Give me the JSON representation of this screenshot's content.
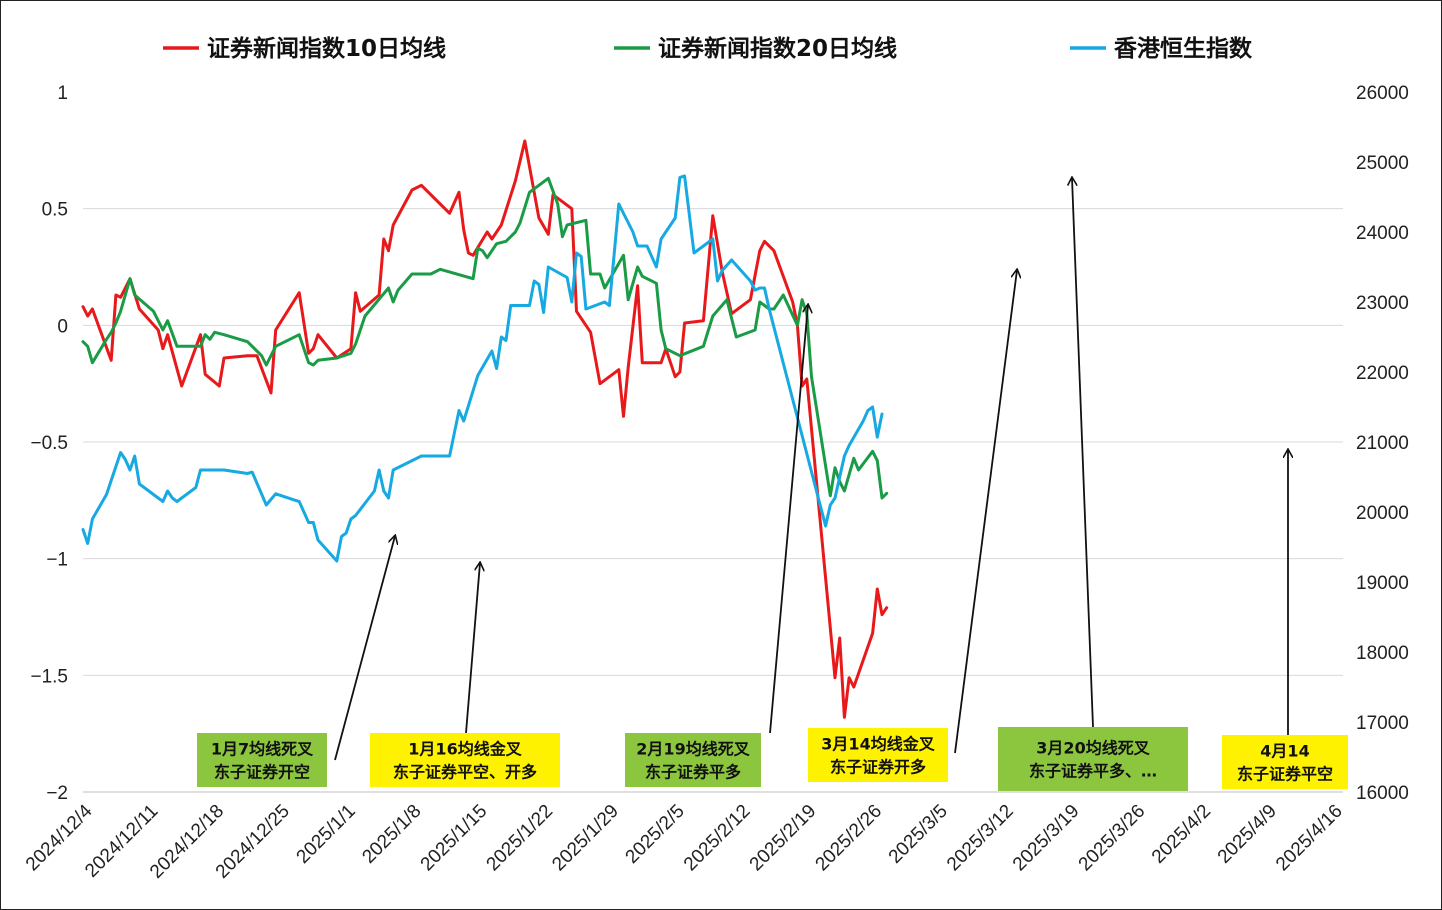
{
  "chart_data": {
    "type": "line",
    "legend_position": "top",
    "grid": "horizontal",
    "x_ticks": [
      "2024/12/4",
      "2024/12/11",
      "2024/12/18",
      "2024/12/25",
      "2025/1/1",
      "2025/1/8",
      "2025/1/15",
      "2025/1/22",
      "2025/1/29",
      "2025/2/5",
      "2025/2/12",
      "2025/2/19",
      "2025/2/26",
      "2025/3/5",
      "2025/3/12",
      "2025/3/19",
      "2025/3/26",
      "2025/4/2",
      "2025/4/9",
      "2025/4/16"
    ],
    "y_left": {
      "ticks": [
        "1",
        "0.5",
        "0",
        "−0.5",
        "−1",
        "−1.5",
        "−2"
      ],
      "range": [
        -2,
        1
      ]
    },
    "y_right": {
      "ticks": [
        "26000",
        "25000",
        "24000",
        "23000",
        "22000",
        "21000",
        "20000",
        "19000",
        "18000",
        "17000",
        "16000"
      ],
      "range": [
        16000,
        26000
      ]
    },
    "series": [
      {
        "name": "证券新闻指数10日均线",
        "color": "#e8191b",
        "axis": "left",
        "points": [
          [
            0,
            0.08
          ],
          [
            0.5,
            0.04
          ],
          [
            1,
            0.07
          ],
          [
            3,
            -0.15
          ],
          [
            3.5,
            0.13
          ],
          [
            4,
            0.12
          ],
          [
            5,
            0.2
          ],
          [
            6,
            0.07
          ],
          [
            8,
            -0.02
          ],
          [
            8.5,
            -0.1
          ],
          [
            9,
            -0.04
          ],
          [
            10.5,
            -0.26
          ],
          [
            12.5,
            -0.04
          ],
          [
            13,
            -0.21
          ],
          [
            14.5,
            -0.26
          ],
          [
            15,
            -0.14
          ],
          [
            17.5,
            -0.13
          ],
          [
            18.5,
            -0.13
          ],
          [
            20,
            -0.29
          ],
          [
            20.5,
            -0.02
          ],
          [
            23,
            0.14
          ],
          [
            24,
            -0.12
          ],
          [
            24.5,
            -0.1
          ],
          [
            25,
            -0.04
          ],
          [
            27,
            -0.14
          ],
          [
            28.5,
            -0.1
          ],
          [
            29,
            0.14
          ],
          [
            29.5,
            0.06
          ],
          [
            31.5,
            0.13
          ],
          [
            32,
            0.37
          ],
          [
            32.5,
            0.32
          ],
          [
            33,
            0.43
          ],
          [
            35,
            0.58
          ],
          [
            36,
            0.6
          ],
          [
            38,
            0.52
          ],
          [
            39,
            0.48
          ],
          [
            40,
            0.57
          ],
          [
            40.5,
            0.41
          ],
          [
            41,
            0.31
          ],
          [
            41.5,
            0.3
          ],
          [
            43,
            0.4
          ],
          [
            43.5,
            0.37
          ],
          [
            44.5,
            0.43
          ],
          [
            46,
            0.62
          ],
          [
            47,
            0.79
          ],
          [
            48.5,
            0.46
          ],
          [
            49.5,
            0.39
          ],
          [
            50,
            0.56
          ],
          [
            51,
            0.53
          ],
          [
            52,
            0.5
          ],
          [
            52.5,
            0.06
          ],
          [
            54,
            -0.03
          ],
          [
            55,
            -0.25
          ],
          [
            57,
            -0.19
          ],
          [
            57.5,
            -0.39
          ],
          [
            58,
            -0.18
          ],
          [
            59,
            0.17
          ],
          [
            59.5,
            -0.16
          ],
          [
            61.5,
            -0.16
          ],
          [
            62,
            -0.1
          ],
          [
            63,
            -0.22
          ],
          [
            63.5,
            -0.2
          ],
          [
            64,
            0.01
          ],
          [
            66,
            0.02
          ],
          [
            67,
            0.47
          ],
          [
            68,
            0.23
          ],
          [
            69,
            0.05
          ],
          [
            71,
            0.11
          ],
          [
            72,
            0.32
          ],
          [
            72.5,
            0.36
          ],
          [
            73.5,
            0.32
          ],
          [
            75.5,
            0.1
          ],
          [
            76,
            0.0
          ],
          [
            76.5,
            -0.26
          ],
          [
            77,
            -0.23
          ],
          [
            80,
            -1.51
          ],
          [
            80.5,
            -1.34
          ],
          [
            81,
            -1.68
          ],
          [
            81.5,
            -1.51
          ],
          [
            82,
            -1.55
          ],
          [
            84,
            -1.32
          ],
          [
            84.5,
            -1.13
          ],
          [
            85,
            -1.24
          ],
          [
            85.5,
            -1.21
          ]
        ]
      },
      {
        "name": "证券新闻指数20日均线",
        "color": "#1a9b45",
        "axis": "left",
        "points": [
          [
            0,
            -0.07
          ],
          [
            0.5,
            -0.09
          ],
          [
            1,
            -0.16
          ],
          [
            2.5,
            -0.06
          ],
          [
            3,
            -0.03
          ],
          [
            3.5,
            0.01
          ],
          [
            4,
            0.06
          ],
          [
            5,
            0.2
          ],
          [
            5.5,
            0.13
          ],
          [
            7.5,
            0.06
          ],
          [
            8.5,
            -0.02
          ],
          [
            9,
            0.02
          ],
          [
            10,
            -0.09
          ],
          [
            12.5,
            -0.09
          ],
          [
            13,
            -0.04
          ],
          [
            13.5,
            -0.06
          ],
          [
            14,
            -0.03
          ],
          [
            15,
            -0.04
          ],
          [
            17.5,
            -0.07
          ],
          [
            19,
            -0.13
          ],
          [
            19.5,
            -0.17
          ],
          [
            20.5,
            -0.09
          ],
          [
            23,
            -0.04
          ],
          [
            24,
            -0.16
          ],
          [
            24.5,
            -0.17
          ],
          [
            25,
            -0.15
          ],
          [
            27,
            -0.14
          ],
          [
            28.5,
            -0.12
          ],
          [
            29,
            -0.08
          ],
          [
            30,
            0.04
          ],
          [
            32.5,
            0.16
          ],
          [
            33,
            0.1
          ],
          [
            33.5,
            0.15
          ],
          [
            35,
            0.22
          ],
          [
            37,
            0.22
          ],
          [
            38,
            0.24
          ],
          [
            41.5,
            0.2
          ],
          [
            42,
            0.33
          ],
          [
            42.5,
            0.32
          ],
          [
            43,
            0.29
          ],
          [
            44,
            0.35
          ],
          [
            45,
            0.36
          ],
          [
            46,
            0.4
          ],
          [
            46.5,
            0.44
          ],
          [
            47.5,
            0.57
          ],
          [
            49.5,
            0.63
          ],
          [
            50.5,
            0.52
          ],
          [
            51,
            0.38
          ],
          [
            51.5,
            0.43
          ],
          [
            53.5,
            0.45
          ],
          [
            54,
            0.22
          ],
          [
            55,
            0.22
          ],
          [
            55.5,
            0.16
          ],
          [
            57.5,
            0.3
          ],
          [
            58,
            0.11
          ],
          [
            59,
            0.25
          ],
          [
            59.5,
            0.21
          ],
          [
            61,
            0.18
          ],
          [
            61.5,
            -0.02
          ],
          [
            62,
            -0.1
          ],
          [
            63.5,
            -0.13
          ],
          [
            66,
            -0.09
          ],
          [
            67,
            0.04
          ],
          [
            68.5,
            0.11
          ],
          [
            69.5,
            -0.05
          ],
          [
            71.5,
            -0.02
          ],
          [
            72,
            0.1
          ],
          [
            73,
            0.07
          ],
          [
            73.5,
            0.07
          ],
          [
            74.5,
            0.13
          ],
          [
            76,
            0.0
          ],
          [
            76.5,
            0.11
          ],
          [
            77,
            0.05
          ],
          [
            77.5,
            -0.22
          ],
          [
            79.5,
            -0.73
          ],
          [
            80,
            -0.61
          ],
          [
            80.5,
            -0.67
          ],
          [
            81,
            -0.71
          ],
          [
            82,
            -0.57
          ],
          [
            82.5,
            -0.62
          ],
          [
            84,
            -0.54
          ],
          [
            84.5,
            -0.58
          ],
          [
            85,
            -0.74
          ],
          [
            85.5,
            -0.72
          ]
        ]
      },
      {
        "name": "香港恒生指数",
        "color": "#17a9e2",
        "axis": "right",
        "points": [
          [
            0,
            19750
          ],
          [
            0.5,
            19550
          ],
          [
            1,
            19900
          ],
          [
            2.5,
            20250
          ],
          [
            3,
            20450
          ],
          [
            4,
            20850
          ],
          [
            4.5,
            20750
          ],
          [
            5,
            20600
          ],
          [
            5.5,
            20800
          ],
          [
            6,
            20400
          ],
          [
            8.5,
            20150
          ],
          [
            9,
            20300
          ],
          [
            9.5,
            20200
          ],
          [
            10,
            20150
          ],
          [
            12,
            20350
          ],
          [
            12.5,
            20600
          ],
          [
            14.5,
            20600
          ],
          [
            15,
            20600
          ],
          [
            17.5,
            20550
          ],
          [
            18,
            20570
          ],
          [
            19.5,
            20100
          ],
          [
            20.5,
            20260
          ],
          [
            22.5,
            20170
          ],
          [
            23,
            20150
          ],
          [
            24,
            19850
          ],
          [
            24.5,
            19850
          ],
          [
            25,
            19600
          ],
          [
            27,
            19300
          ],
          [
            27.5,
            19650
          ],
          [
            28,
            19700
          ],
          [
            28.5,
            19900
          ],
          [
            29,
            19950
          ],
          [
            31,
            20300
          ],
          [
            31.5,
            20600
          ],
          [
            32,
            20300
          ],
          [
            32.5,
            20200
          ],
          [
            33,
            20600
          ],
          [
            36,
            20800
          ],
          [
            37,
            20800
          ],
          [
            39,
            20800
          ],
          [
            40,
            21450
          ],
          [
            40.5,
            21300
          ],
          [
            42,
            21950
          ],
          [
            43.5,
            22300
          ],
          [
            44,
            22050
          ],
          [
            44.5,
            22500
          ],
          [
            45,
            22450
          ],
          [
            45.5,
            22950
          ],
          [
            47.5,
            22950
          ],
          [
            48,
            23300
          ],
          [
            48.5,
            23250
          ],
          [
            49,
            22850
          ],
          [
            49.5,
            23500
          ],
          [
            51.5,
            23350
          ],
          [
            52,
            23000
          ],
          [
            52.5,
            23700
          ],
          [
            53,
            23650
          ],
          [
            53.5,
            22900
          ],
          [
            55.5,
            23000
          ],
          [
            56,
            22950
          ],
          [
            57,
            24400
          ],
          [
            58.5,
            24000
          ],
          [
            59,
            23800
          ],
          [
            60,
            23800
          ],
          [
            61,
            23500
          ],
          [
            61.5,
            23900
          ],
          [
            63,
            24200
          ],
          [
            63.5,
            24780
          ],
          [
            64,
            24800
          ],
          [
            65,
            23700
          ],
          [
            67,
            23900
          ],
          [
            67.5,
            23300
          ],
          [
            68,
            23450
          ],
          [
            69,
            23600
          ],
          [
            70,
            23450
          ],
          [
            71,
            23300
          ],
          [
            71.5,
            23170
          ],
          [
            72,
            23200
          ],
          [
            72.5,
            23200
          ],
          [
            73,
            22900
          ],
          [
            79,
            19800
          ],
          [
            79.5,
            20100
          ],
          [
            80,
            20200
          ],
          [
            81,
            20800
          ],
          [
            81.5,
            20950
          ],
          [
            83,
            21300
          ],
          [
            83.5,
            21450
          ],
          [
            84,
            21500
          ],
          [
            84.5,
            21070
          ],
          [
            85,
            21400
          ]
        ]
      }
    ],
    "annotations": [
      {
        "label_lines": [
          "1月7均线死叉",
          "东子证券开空"
        ],
        "bg": "#8cc63f"
      },
      {
        "label_lines": [
          "1月16均线金叉",
          "东子证券平空、开多"
        ],
        "bg": "#fff200"
      },
      {
        "label_lines": [
          "2月19均线死叉",
          "东子证券平多"
        ],
        "bg": "#8cc63f"
      },
      {
        "label_lines": [
          "3月14均线金叉",
          "东子证券开多"
        ],
        "bg": "#fff200"
      },
      {
        "label_lines": [
          "3月20均线死叉",
          "东子证券平多、…"
        ],
        "bg": "#8cc63f"
      },
      {
        "label_lines": [
          "4月14",
          "东子证券平空"
        ],
        "bg": "#fff200"
      }
    ]
  }
}
